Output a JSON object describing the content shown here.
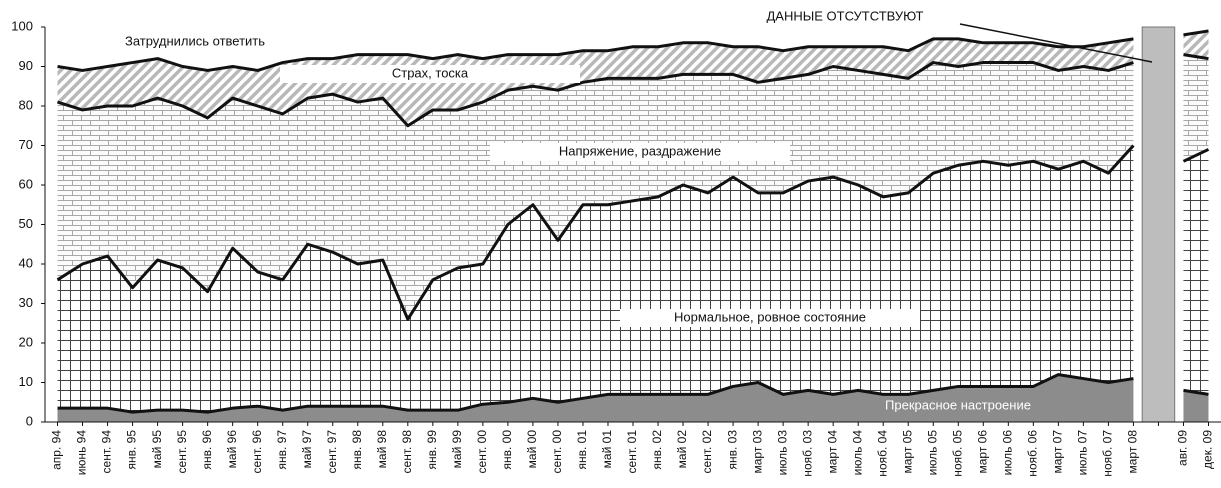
{
  "chart_data": {
    "type": "stacked_area",
    "annotation": "ДАННЫЕ ОТСУТСТВУЮТ",
    "categories": [
      "апр. 94",
      "июнь 94",
      "сент. 94",
      "янв. 95",
      "май 95",
      "сент. 95",
      "янв. 96",
      "май 96",
      "сент. 96",
      "янв. 97",
      "май 97",
      "сент. 97",
      "янв. 98",
      "май 98",
      "сент. 98",
      "янв. 99",
      "май 99",
      "сент. 00",
      "янв. 00",
      "май 00",
      "сент. 00",
      "янв. 01",
      "май 01",
      "сент. 01",
      "янв. 02",
      "май 02",
      "сент. 02",
      "янв. 03",
      "март 03",
      "июль 03",
      "нояб. 03",
      "март 04",
      "июль 04",
      "нояб. 04",
      "март 05",
      "июль 05",
      "нояб. 05",
      "март 06",
      "июль 06",
      "нояб. 06",
      "март 07",
      "июль 07",
      "нояб. 07",
      "март 08",
      null,
      "авг. 09",
      "дек. 09"
    ],
    "series": [
      {
        "name": "Прекрасное настроение",
        "color": "#8c8c8c",
        "fill": "solid",
        "values": [
          3.5,
          3.5,
          3.5,
          2.5,
          3,
          3,
          2.5,
          3.5,
          4,
          3,
          4,
          4,
          4,
          4,
          3,
          3,
          3,
          4.5,
          5,
          6,
          5,
          6,
          7,
          7,
          7,
          7,
          7,
          9,
          10,
          7,
          8,
          7,
          8,
          7,
          7,
          8,
          9,
          9,
          9,
          9,
          12,
          11,
          10,
          11,
          null,
          8,
          7
        ]
      },
      {
        "name": "Нормальное, ровное состояние",
        "color": "#333333",
        "fill": "grid",
        "values": [
          32.5,
          36.5,
          38.5,
          31.5,
          38,
          36,
          30.5,
          40.5,
          34,
          33,
          41,
          39,
          36,
          37,
          23,
          33,
          36,
          35.5,
          45,
          49,
          41,
          49,
          48,
          49,
          50,
          53,
          51,
          53,
          48,
          51,
          53,
          55,
          52,
          50,
          51,
          55,
          56,
          57,
          56,
          57,
          52,
          55,
          53,
          59,
          null,
          58,
          62
        ]
      },
      {
        "name": "Напряжение, раздражение",
        "color": "#999999",
        "fill": "brick",
        "values": [
          45,
          39,
          38,
          46,
          41,
          41,
          44,
          38,
          42,
          42,
          37,
          40,
          41,
          41,
          49,
          43,
          40,
          41,
          34,
          30,
          38,
          31,
          32,
          31,
          30,
          28,
          30,
          26,
          28,
          29,
          27,
          28,
          29,
          31,
          29,
          28,
          25,
          25,
          26,
          25,
          25,
          24,
          26,
          21,
          null,
          27,
          23
        ]
      },
      {
        "name": "Страх, тоска",
        "color": "#b0b0b0",
        "fill": "hatch",
        "values": [
          9,
          10,
          10,
          11,
          10,
          10,
          12,
          8,
          9,
          13,
          10,
          9,
          12,
          11,
          18,
          13,
          14,
          11,
          9,
          8,
          9,
          8,
          7,
          8,
          8,
          8,
          8,
          7,
          9,
          7,
          7,
          5,
          6,
          7,
          7,
          6,
          7,
          5,
          5,
          5,
          6,
          5,
          7,
          6,
          null,
          5,
          7
        ]
      },
      {
        "name": "Затруднились ответить",
        "color": "#ffffff",
        "fill": "solid",
        "values": [
          10,
          11,
          10,
          9,
          8,
          10,
          11,
          10,
          11,
          9,
          8,
          8,
          7,
          7,
          7,
          8,
          7,
          8,
          7,
          7,
          7,
          6,
          6,
          5,
          5,
          4,
          4,
          5,
          5,
          6,
          5,
          5,
          5,
          5,
          6,
          3,
          3,
          4,
          4,
          4,
          5,
          5,
          4,
          3,
          null,
          2,
          1
        ]
      }
    ],
    "ylim": [
      0,
      100
    ],
    "yticks": [
      0,
      10,
      20,
      30,
      40,
      50,
      60,
      70,
      80,
      90,
      100
    ],
    "grid": false
  }
}
